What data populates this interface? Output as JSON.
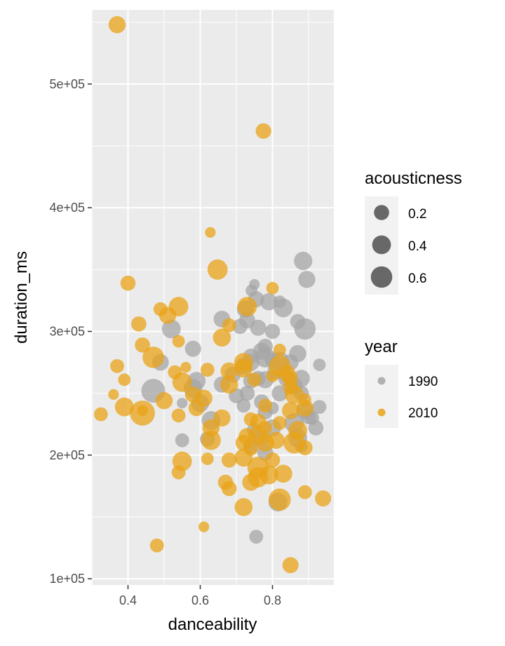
{
  "chart_data": {
    "type": "scatter",
    "title": "",
    "xlabel": "danceability",
    "ylabel": "duration_ms",
    "xlim": [
      0.3,
      0.97
    ],
    "ylim": [
      95000,
      560000
    ],
    "x_ticks": [
      {
        "value": 0.4,
        "label": "0.4"
      },
      {
        "value": 0.6,
        "label": "0.6"
      },
      {
        "value": 0.8,
        "label": "0.8"
      }
    ],
    "y_ticks": [
      {
        "value": 100000,
        "label": "1e+05"
      },
      {
        "value": 200000,
        "label": "2e+05"
      },
      {
        "value": 300000,
        "label": "3e+05"
      },
      {
        "value": 400000,
        "label": "4e+05"
      },
      {
        "value": 500000,
        "label": "5e+05"
      }
    ],
    "grid": true,
    "panel_background": "#ebebeb",
    "legend_position": "right",
    "size_legend": {
      "title": "acousticness",
      "entries": [
        {
          "value": 0.2,
          "label": "0.2"
        },
        {
          "value": 0.4,
          "label": "0.4"
        },
        {
          "value": 0.6,
          "label": "0.6"
        }
      ],
      "key_color": "#595959"
    },
    "color_legend": {
      "title": "year",
      "entries": [
        {
          "label": "1990",
          "color": "#a6a6a6"
        },
        {
          "label": "2010",
          "color": "#e8a317"
        }
      ]
    },
    "series": [
      {
        "name": "1990",
        "color": "#a6a6a6",
        "points": [
          [
            0.885,
            357000,
            0.38
          ],
          [
            0.895,
            342000,
            0.3
          ],
          [
            0.75,
            338000,
            0.05
          ],
          [
            0.742,
            333000,
            0.08
          ],
          [
            0.755,
            326000,
            0.25
          ],
          [
            0.79,
            324000,
            0.3
          ],
          [
            0.82,
            324000,
            0.1
          ],
          [
            0.83,
            319000,
            0.4
          ],
          [
            0.725,
            318000,
            0.3
          ],
          [
            0.66,
            310000,
            0.28
          ],
          [
            0.73,
            309000,
            0.25
          ],
          [
            0.87,
            308000,
            0.2
          ],
          [
            0.89,
            302000,
            0.6
          ],
          [
            0.71,
            304000,
            0.2
          ],
          [
            0.76,
            303000,
            0.25
          ],
          [
            0.8,
            300000,
            0.2
          ],
          [
            0.52,
            302000,
            0.4
          ],
          [
            0.78,
            288000,
            0.2
          ],
          [
            0.77,
            284000,
            0.3
          ],
          [
            0.58,
            286000,
            0.25
          ],
          [
            0.87,
            282000,
            0.3
          ],
          [
            0.74,
            280000,
            0.2
          ],
          [
            0.78,
            279000,
            0.5
          ],
          [
            0.8,
            277000,
            0.2
          ],
          [
            0.82,
            276000,
            0.4
          ],
          [
            0.74,
            275000,
            0.3
          ],
          [
            0.85,
            275000,
            0.25
          ],
          [
            0.49,
            275000,
            0.28
          ],
          [
            0.93,
            273000,
            0.1
          ],
          [
            0.72,
            272000,
            0.3
          ],
          [
            0.81,
            268000,
            0.3
          ],
          [
            0.69,
            265000,
            0.25
          ],
          [
            0.76,
            262000,
            0.2
          ],
          [
            0.88,
            262000,
            0.3
          ],
          [
            0.84,
            262000,
            0.3
          ],
          [
            0.78,
            261000,
            0.3
          ],
          [
            0.59,
            260000,
            0.35
          ],
          [
            0.74,
            260000,
            0.2
          ],
          [
            0.66,
            257000,
            0.25
          ],
          [
            0.86,
            256000,
            0.3
          ],
          [
            0.47,
            252000,
            0.8
          ],
          [
            0.58,
            254000,
            0.4
          ],
          [
            0.73,
            250000,
            0.2
          ],
          [
            0.82,
            250000,
            0.25
          ],
          [
            0.88,
            250000,
            0.2
          ],
          [
            0.7,
            248000,
            0.2
          ],
          [
            0.77,
            243000,
            0.2
          ],
          [
            0.93,
            239000,
            0.15
          ],
          [
            0.55,
            242000,
            0.05
          ],
          [
            0.6,
            242000,
            0.35
          ],
          [
            0.72,
            240000,
            0.15
          ],
          [
            0.8,
            238000,
            0.1
          ],
          [
            0.89,
            236000,
            0.3
          ],
          [
            0.78,
            235000,
            0.2
          ],
          [
            0.9,
            231000,
            0.2
          ],
          [
            0.91,
            230000,
            0.15
          ],
          [
            0.63,
            228000,
            0.4
          ],
          [
            0.8,
            222000,
            0.3
          ],
          [
            0.92,
            222000,
            0.2
          ],
          [
            0.86,
            226000,
            0.45
          ],
          [
            0.75,
            220000,
            0.2
          ],
          [
            0.77,
            213000,
            0.25
          ],
          [
            0.55,
            212000,
            0.15
          ],
          [
            0.88,
            207000,
            0.1
          ],
          [
            0.62,
            213000,
            0.2
          ],
          [
            0.87,
            214000,
            0.4
          ],
          [
            0.74,
            207000,
            0.2
          ],
          [
            0.78,
            202000,
            0.25
          ],
          [
            0.815,
            162000,
            0.4
          ],
          [
            0.755,
            134000,
            0.15
          ]
        ]
      },
      {
        "name": "2010",
        "color": "#e8a317",
        "points": [
          [
            0.37,
            548000,
            0.3
          ],
          [
            0.775,
            462000,
            0.22
          ],
          [
            0.628,
            380000,
            0.05
          ],
          [
            0.648,
            350000,
            0.5
          ],
          [
            0.4,
            339000,
            0.2
          ],
          [
            0.8,
            335000,
            0.1
          ],
          [
            0.73,
            320000,
            0.45
          ],
          [
            0.54,
            320000,
            0.45
          ],
          [
            0.49,
            318000,
            0.15
          ],
          [
            0.51,
            313000,
            0.3
          ],
          [
            0.43,
            306000,
            0.2
          ],
          [
            0.68,
            305000,
            0.15
          ],
          [
            0.66,
            295000,
            0.35
          ],
          [
            0.44,
            289000,
            0.2
          ],
          [
            0.82,
            285000,
            0.1
          ],
          [
            0.47,
            279000,
            0.6
          ],
          [
            0.54,
            292000,
            0.1
          ],
          [
            0.37,
            272000,
            0.15
          ],
          [
            0.72,
            275000,
            0.4
          ],
          [
            0.56,
            271000,
            0.05
          ],
          [
            0.62,
            269000,
            0.15
          ],
          [
            0.53,
            267000,
            0.15
          ],
          [
            0.68,
            268000,
            0.3
          ],
          [
            0.72,
            270000,
            0.35
          ],
          [
            0.82,
            272000,
            0.6
          ],
          [
            0.84,
            266000,
            0.3
          ],
          [
            0.85,
            262000,
            0.2
          ],
          [
            0.8,
            264000,
            0.1
          ],
          [
            0.39,
            261000,
            0.1
          ],
          [
            0.55,
            259000,
            0.45
          ],
          [
            0.68,
            257000,
            0.35
          ],
          [
            0.75,
            261000,
            0.15
          ],
          [
            0.85,
            255000,
            0.2
          ],
          [
            0.36,
            249000,
            0.05
          ],
          [
            0.58,
            249000,
            0.25
          ],
          [
            0.61,
            246000,
            0.3
          ],
          [
            0.86,
            249000,
            0.4
          ],
          [
            0.89,
            245000,
            0.1
          ],
          [
            0.5,
            244000,
            0.3
          ],
          [
            0.78,
            240000,
            0.15
          ],
          [
            0.39,
            239000,
            0.4
          ],
          [
            0.59,
            238000,
            0.25
          ],
          [
            0.44,
            234000,
            0.9
          ],
          [
            0.44,
            236000,
            0.05
          ],
          [
            0.85,
            236000,
            0.3
          ],
          [
            0.89,
            238000,
            0.3
          ],
          [
            0.325,
            233000,
            0.15
          ],
          [
            0.54,
            232000,
            0.15
          ],
          [
            0.66,
            230000,
            0.3
          ],
          [
            0.74,
            229000,
            0.15
          ],
          [
            0.82,
            226000,
            0.15
          ],
          [
            0.76,
            227000,
            0.25
          ],
          [
            0.78,
            222000,
            0.15
          ],
          [
            0.63,
            222000,
            0.3
          ],
          [
            0.87,
            220000,
            0.4
          ],
          [
            0.73,
            215000,
            0.3
          ],
          [
            0.72,
            210000,
            0.25
          ],
          [
            0.76,
            216000,
            0.4
          ],
          [
            0.81,
            212000,
            0.3
          ],
          [
            0.63,
            212000,
            0.45
          ],
          [
            0.78,
            210000,
            0.35
          ],
          [
            0.86,
            210000,
            0.6
          ],
          [
            0.89,
            206000,
            0.2
          ],
          [
            0.74,
            205000,
            0.15
          ],
          [
            0.68,
            196000,
            0.2
          ],
          [
            0.72,
            198000,
            0.35
          ],
          [
            0.8,
            196000,
            0.2
          ],
          [
            0.62,
            197000,
            0.1
          ],
          [
            0.55,
            195000,
            0.45
          ],
          [
            0.54,
            186000,
            0.15
          ],
          [
            0.76,
            190000,
            0.6
          ],
          [
            0.76,
            182000,
            0.5
          ],
          [
            0.79,
            184000,
            0.4
          ],
          [
            0.74,
            178000,
            0.3
          ],
          [
            0.67,
            178000,
            0.2
          ],
          [
            0.83,
            185000,
            0.35
          ],
          [
            0.68,
            173000,
            0.2
          ],
          [
            0.82,
            164000,
            0.65
          ],
          [
            0.89,
            170000,
            0.15
          ],
          [
            0.72,
            158000,
            0.35
          ],
          [
            0.94,
            165000,
            0.25
          ],
          [
            0.61,
            142000,
            0.05
          ],
          [
            0.48,
            127000,
            0.15
          ],
          [
            0.85,
            111000,
            0.25
          ]
        ]
      }
    ]
  }
}
